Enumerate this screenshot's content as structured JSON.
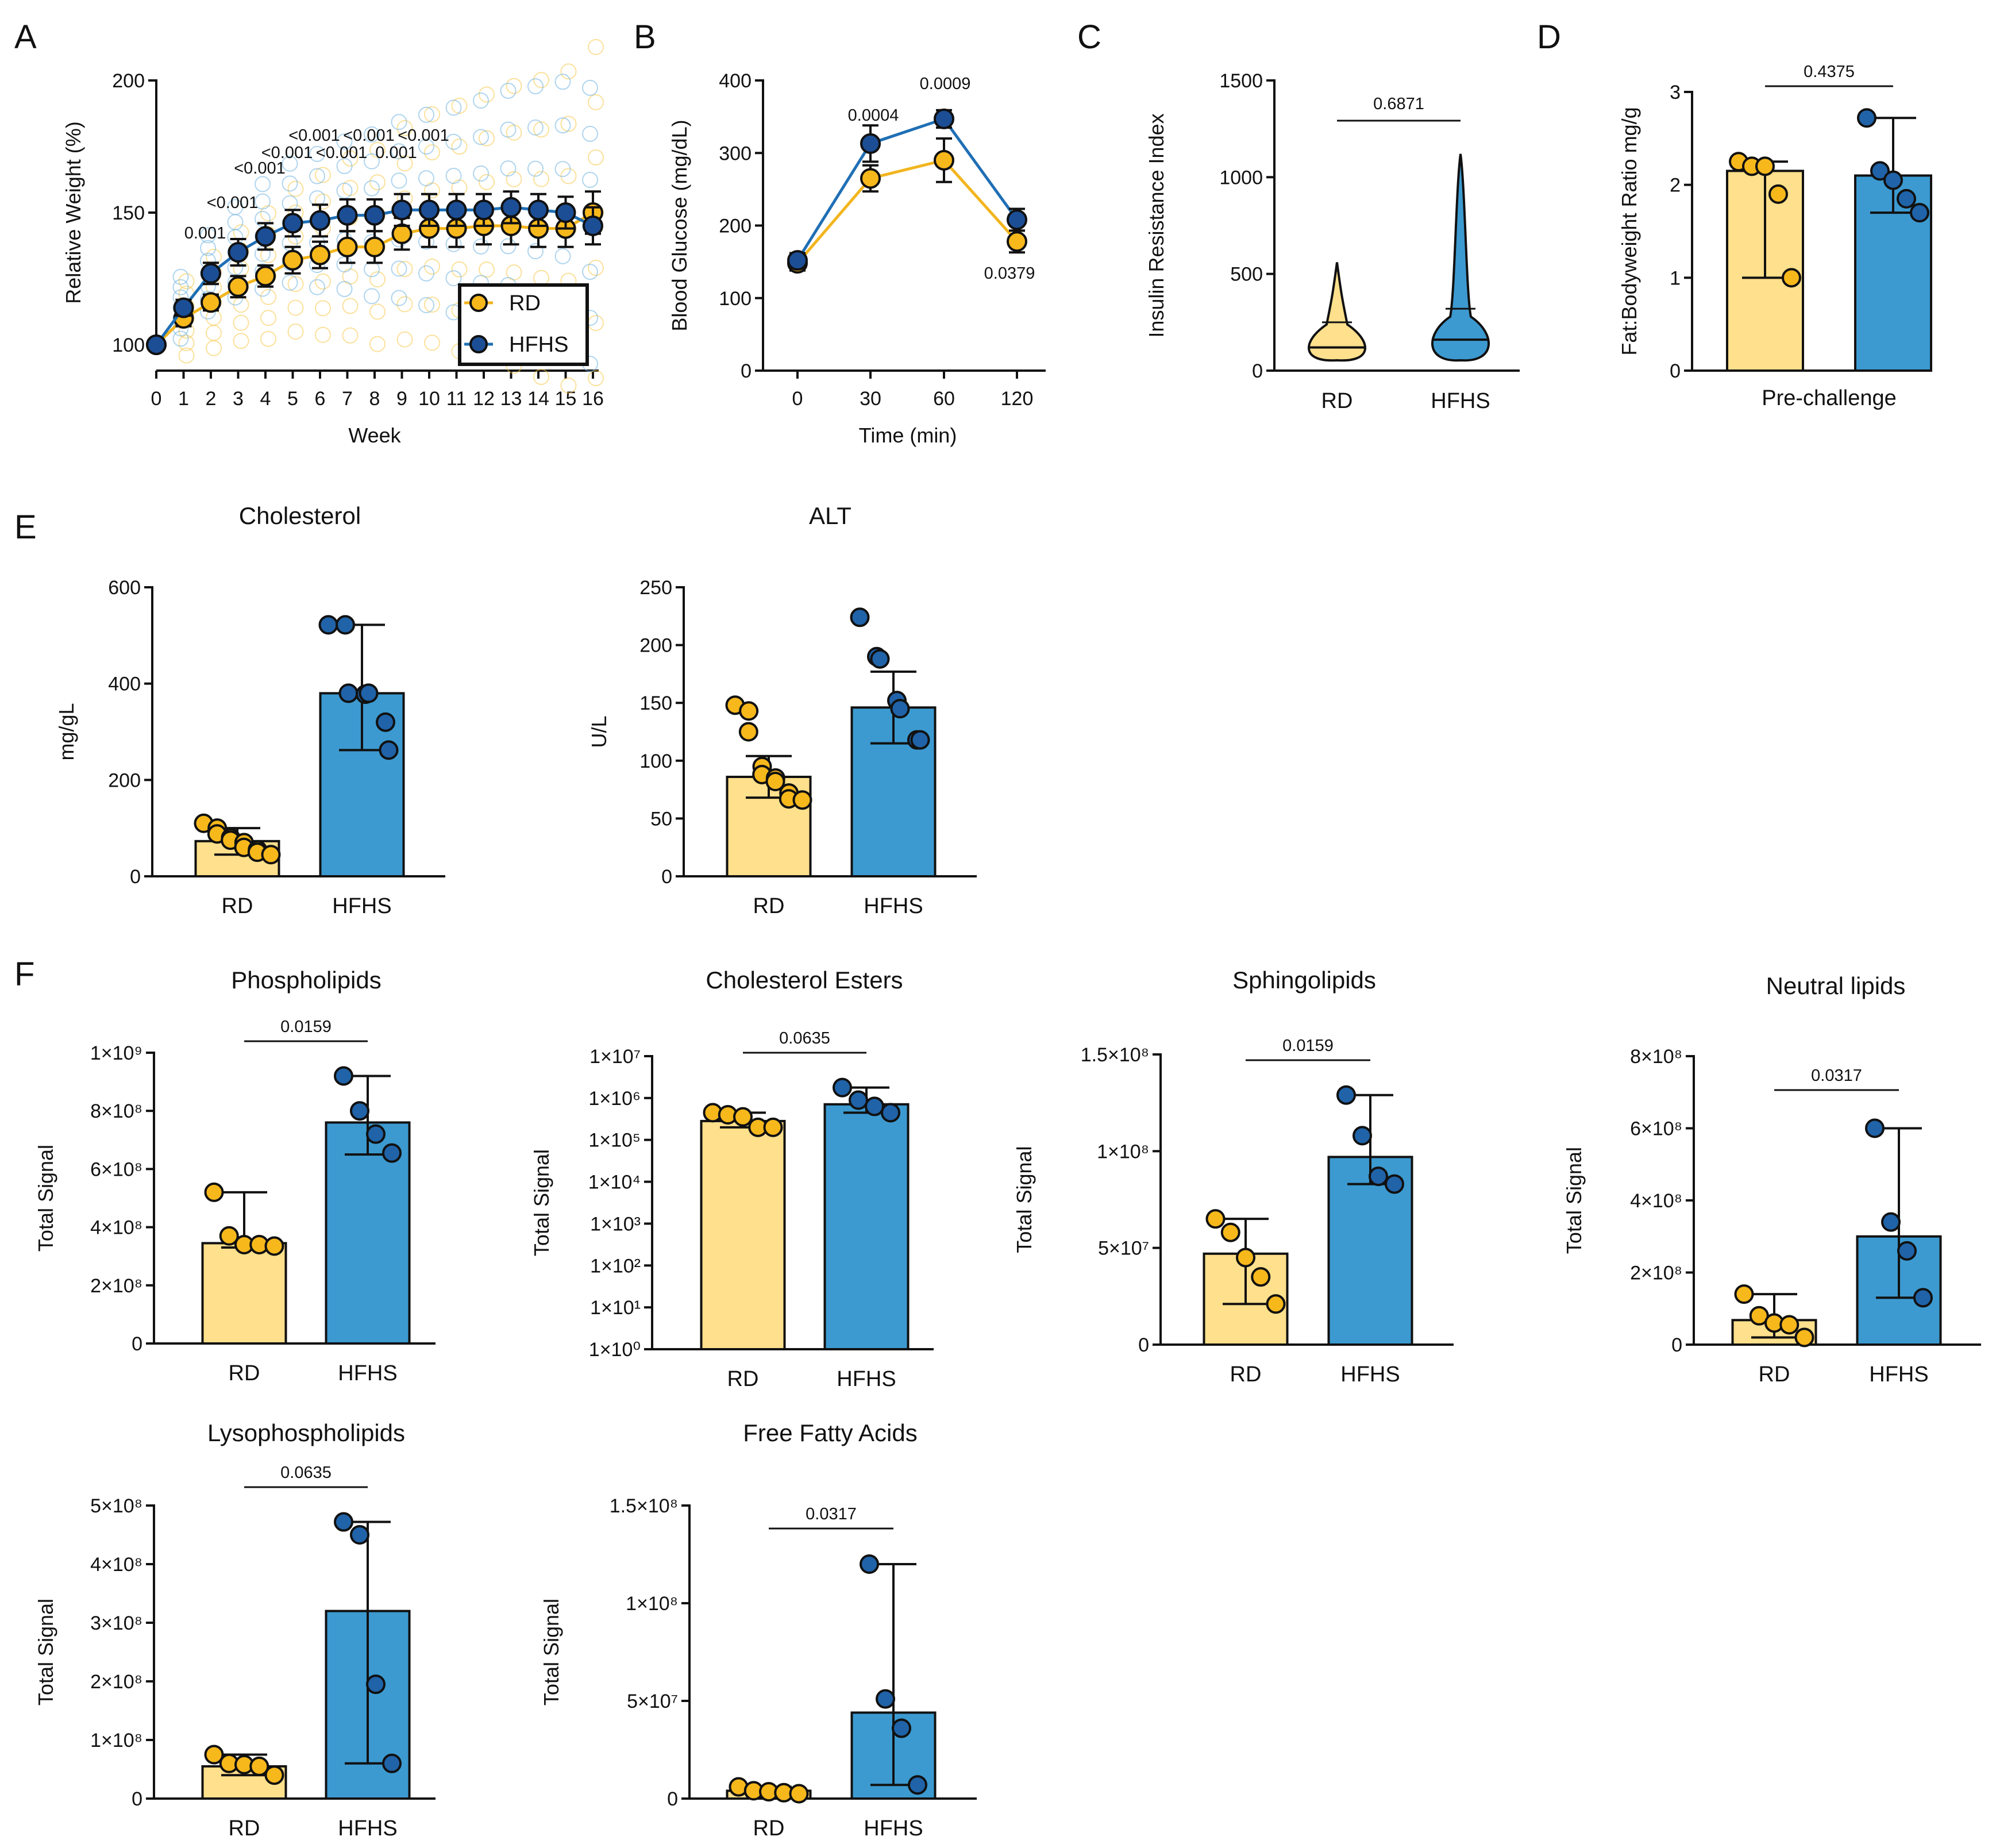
{
  "chart_data": [
    {
      "panel": "A",
      "type": "line",
      "xlabel": "Week",
      "ylabel": "Relative Weight (%)",
      "ylim": [
        100,
        200
      ],
      "yticks": [
        100,
        150,
        200
      ],
      "x": [
        0,
        1,
        2,
        3,
        4,
        5,
        6,
        7,
        8,
        9,
        10,
        11,
        12,
        13,
        14,
        15,
        16
      ],
      "series": [
        {
          "name": "RD",
          "color": "#F7B81C",
          "values": [
            100,
            110,
            116,
            122,
            126,
            132,
            134,
            137,
            137,
            142,
            144,
            144,
            145,
            145,
            144,
            144,
            150
          ],
          "err": [
            0,
            3,
            3,
            4,
            4,
            5,
            5,
            6,
            6,
            6,
            7,
            7,
            7,
            7,
            7,
            7,
            8
          ]
        },
        {
          "name": "HFHS",
          "color": "#1C4E96",
          "values": [
            100,
            114,
            127,
            135,
            141,
            146,
            147,
            149,
            149,
            151,
            151,
            151,
            151,
            152,
            151,
            150,
            145
          ],
          "err": [
            0,
            3,
            4,
            5,
            5,
            5,
            6,
            6,
            6,
            6,
            6,
            6,
            6,
            6,
            6,
            6,
            7
          ]
        }
      ],
      "legend": "bottom-right",
      "annotations": [
        {
          "text": "0.001",
          "x": 2
        },
        {
          "text": "<0.001",
          "x": 3
        },
        {
          "text": "<0.001",
          "x": 4
        },
        {
          "text": "<0.001",
          "x": 5
        },
        {
          "text": "<0.001",
          "x": 6
        },
        {
          "text": "<0.001",
          "x": 7
        },
        {
          "text": "<0.001",
          "x": 8
        },
        {
          "text": "0.001",
          "x": 9
        },
        {
          "text": "<0.001",
          "x": 10
        }
      ]
    },
    {
      "panel": "B",
      "type": "line",
      "xlabel": "Time (min)",
      "ylabel": "Blood Glucose (mg/dL)",
      "ylim": [
        0,
        400
      ],
      "yticks": [
        0,
        100,
        200,
        300,
        400
      ],
      "x": [
        0,
        30,
        60,
        120
      ],
      "series": [
        {
          "name": "RD",
          "color": "#F7B81C",
          "values": [
            148,
            265,
            290,
            178
          ],
          "err": [
            10,
            18,
            30,
            15
          ]
        },
        {
          "name": "HFHS",
          "color": "#1C4E96",
          "values": [
            152,
            313,
            347,
            208
          ],
          "err": [
            10,
            25,
            12,
            15
          ]
        }
      ],
      "annotations": [
        {
          "text": "0.0004",
          "x": 30
        },
        {
          "text": "0.0009",
          "x": 60
        },
        {
          "text": "0.0379",
          "x": 120
        }
      ]
    },
    {
      "panel": "C",
      "type": "violin",
      "ylabel": "Insulin Resistance Index",
      "ylim": [
        0,
        1500
      ],
      "yticks": [
        0,
        500,
        1000,
        1500
      ],
      "categories": [
        "RD",
        "HFHS"
      ],
      "pvalue": "0.6871",
      "violins": [
        {
          "name": "RD",
          "color": "#FFE08C",
          "max": 560,
          "median": 120,
          "q1": 60,
          "q3": 250
        },
        {
          "name": "HFHS",
          "color": "#3C9AD0",
          "max": 1120,
          "median": 160,
          "q1": 80,
          "q3": 320
        }
      ]
    },
    {
      "panel": "D",
      "type": "bar",
      "ylabel": "Fat:Bodyweight Ratio mg/g",
      "xlabel": "Pre-challenge",
      "ylim": [
        0,
        3
      ],
      "yticks": [
        0,
        1,
        2,
        3
      ],
      "pvalue": "0.4375",
      "groups": [
        {
          "name": "RD",
          "value": 2.15,
          "range": [
            1.0,
            2.25
          ],
          "points": [
            2.25,
            2.2,
            2.2,
            1.9,
            1.0
          ]
        },
        {
          "name": "HFHS",
          "value": 2.1,
          "range": [
            1.7,
            2.72
          ],
          "points": [
            2.72,
            2.15,
            2.05,
            1.85,
            1.7
          ]
        }
      ]
    },
    {
      "panel": "E",
      "title": "Cholesterol",
      "type": "bar",
      "ylabel": "mg/gL",
      "ylim": [
        0,
        600
      ],
      "yticks": [
        0,
        200,
        400,
        600
      ],
      "groups": [
        {
          "name": "RD",
          "value": 73,
          "range": [
            45,
            100
          ],
          "points": [
            110,
            100,
            88,
            80,
            75,
            70,
            60,
            55,
            50,
            45
          ]
        },
        {
          "name": "HFHS",
          "value": 380,
          "range": [
            262,
            522
          ],
          "points": [
            522,
            522,
            380,
            378,
            380,
            320,
            262
          ]
        }
      ]
    },
    {
      "panel": "E",
      "title": "ALT",
      "type": "bar",
      "ylabel": "U/L",
      "ylim": [
        0,
        250
      ],
      "yticks": [
        0,
        50,
        100,
        150,
        200,
        250
      ],
      "groups": [
        {
          "name": "RD",
          "value": 86,
          "range": [
            68,
            104
          ],
          "points": [
            148,
            143,
            125,
            95,
            88,
            85,
            82,
            72,
            67,
            66
          ]
        },
        {
          "name": "HFHS",
          "value": 146,
          "range": [
            115,
            177
          ],
          "points": [
            224,
            190,
            188,
            152,
            145,
            118,
            118
          ]
        }
      ]
    },
    {
      "panel": "F",
      "title": "Phospholipids",
      "type": "bar",
      "ylabel": "Total Signal",
      "ylim": [
        0,
        1000000000
      ],
      "yticks": [
        {
          "v": 0,
          "label": "0"
        },
        {
          "v": 200000000,
          "label": "2×10⁸"
        },
        {
          "v": 400000000,
          "label": "4×10⁸"
        },
        {
          "v": 600000000,
          "label": "6×10⁸"
        },
        {
          "v": 800000000,
          "label": "8×10⁸"
        },
        {
          "v": 1000000000,
          "label": "1×10⁹"
        }
      ],
      "pvalue": "0.0159",
      "groups": [
        {
          "name": "RD",
          "value": 345000000,
          "range": [
            330000000,
            520000000
          ],
          "points": [
            520000000,
            370000000,
            340000000,
            340000000,
            335000000
          ]
        },
        {
          "name": "HFHS",
          "value": 760000000,
          "range": [
            650000000,
            920000000
          ],
          "points": [
            920000000,
            800000000,
            720000000,
            655000000
          ]
        }
      ]
    },
    {
      "panel": "F",
      "title": "Cholesterol Esters",
      "type": "bar",
      "scale": "log",
      "ylabel": "Total Signal",
      "ylim": [
        0,
        7
      ],
      "yticks": [
        {
          "v": 0,
          "label": "1×10⁰"
        },
        {
          "v": 1,
          "label": "1×10¹"
        },
        {
          "v": 2,
          "label": "1×10²"
        },
        {
          "v": 3,
          "label": "1×10³"
        },
        {
          "v": 4,
          "label": "1×10⁴"
        },
        {
          "v": 5,
          "label": "1×10⁵"
        },
        {
          "v": 6,
          "label": "1×10⁶"
        },
        {
          "v": 7,
          "label": "1×10⁷"
        }
      ],
      "pvalue": "0.0635",
      "groups": [
        {
          "name": "RD",
          "value": 5.45,
          "range": [
            5.3,
            5.65
          ],
          "points": [
            5.65,
            5.6,
            5.55,
            5.3,
            5.3
          ]
        },
        {
          "name": "HFHS",
          "value": 5.85,
          "range": [
            5.65,
            6.25
          ],
          "points": [
            6.25,
            5.95,
            5.8,
            5.65
          ]
        }
      ]
    },
    {
      "panel": "F",
      "title": "Sphingolipids",
      "type": "bar",
      "ylabel": "Total Signal",
      "ylim": [
        0,
        150000000
      ],
      "yticks": [
        {
          "v": 0,
          "label": "0"
        },
        {
          "v": 50000000,
          "label": "5×10⁷"
        },
        {
          "v": 100000000,
          "label": "1×10⁸"
        },
        {
          "v": 150000000,
          "label": "1.5×10⁸"
        }
      ],
      "pvalue": "0.0159",
      "groups": [
        {
          "name": "RD",
          "value": 47000000,
          "range": [
            21000000,
            65000000
          ],
          "points": [
            65000000,
            58000000,
            45000000,
            35000000,
            21000000
          ]
        },
        {
          "name": "HFHS",
          "value": 97000000,
          "range": [
            83000000,
            129000000
          ],
          "points": [
            129000000,
            108000000,
            87000000,
            83000000
          ]
        }
      ]
    },
    {
      "panel": "F",
      "title": "Neutral lipids",
      "type": "bar",
      "ylabel": "Total Signal",
      "ylim": [
        0,
        800000000
      ],
      "yticks": [
        {
          "v": 0,
          "label": "0"
        },
        {
          "v": 200000000,
          "label": "2×10⁸"
        },
        {
          "v": 400000000,
          "label": "4×10⁸"
        },
        {
          "v": 600000000,
          "label": "6×10⁸"
        },
        {
          "v": 800000000,
          "label": "8×10⁸"
        }
      ],
      "pvalue": "0.0317",
      "groups": [
        {
          "name": "RD",
          "value": 68000000,
          "range": [
            20000000,
            140000000
          ],
          "points": [
            140000000,
            80000000,
            60000000,
            55000000,
            20000000
          ]
        },
        {
          "name": "HFHS",
          "value": 300000000,
          "range": [
            130000000,
            600000000
          ],
          "points": [
            600000000,
            340000000,
            260000000,
            130000000
          ]
        }
      ]
    },
    {
      "panel": "F",
      "title": "Lysophospholipids",
      "type": "bar",
      "ylabel": "Total Signal",
      "ylim": [
        0,
        500000000
      ],
      "yticks": [
        {
          "v": 0,
          "label": "0"
        },
        {
          "v": 100000000,
          "label": "1×10⁸"
        },
        {
          "v": 200000000,
          "label": "2×10⁸"
        },
        {
          "v": 300000000,
          "label": "3×10⁸"
        },
        {
          "v": 400000000,
          "label": "4×10⁸"
        },
        {
          "v": 500000000,
          "label": "5×10⁸"
        }
      ],
      "pvalue": "0.0635",
      "groups": [
        {
          "name": "RD",
          "value": 55000000,
          "range": [
            40000000,
            75000000
          ],
          "points": [
            75000000,
            60000000,
            58000000,
            55000000,
            40000000
          ]
        },
        {
          "name": "HFHS",
          "value": 320000000,
          "range": [
            60000000,
            472000000
          ],
          "points": [
            472000000,
            450000000,
            195000000,
            60000000
          ]
        }
      ]
    },
    {
      "panel": "F",
      "title": "Free Fatty Acids",
      "type": "bar",
      "ylabel": "Total Signal",
      "ylim": [
        0,
        150000000
      ],
      "yticks": [
        {
          "v": 0,
          "label": "0"
        },
        {
          "v": 50000000,
          "label": "5×10⁷"
        },
        {
          "v": 100000000,
          "label": "1×10⁸"
        },
        {
          "v": 150000000,
          "label": "1.5×10⁸"
        }
      ],
      "pvalue": "0.0317",
      "groups": [
        {
          "name": "RD",
          "value": 4000000,
          "range": [
            2000000,
            6000000
          ],
          "points": [
            6000000,
            4000000,
            3500000,
            3000000,
            2500000
          ]
        },
        {
          "name": "HFHS",
          "value": 44000000,
          "range": [
            7000000,
            120000000
          ],
          "points": [
            120000000,
            51000000,
            36000000,
            7000000
          ]
        }
      ]
    }
  ],
  "panels": {
    "a": "A",
    "b": "B",
    "c": "C",
    "d": "D",
    "e": "E",
    "f": "F"
  },
  "colors": {
    "rd_point": "#F7B81C",
    "hfhs_point": "#1C4E96",
    "rd_bar": "#FFE08C",
    "hfhs_bar": "#3C9AD0",
    "hfhs_bar_point": "#2063A8"
  }
}
